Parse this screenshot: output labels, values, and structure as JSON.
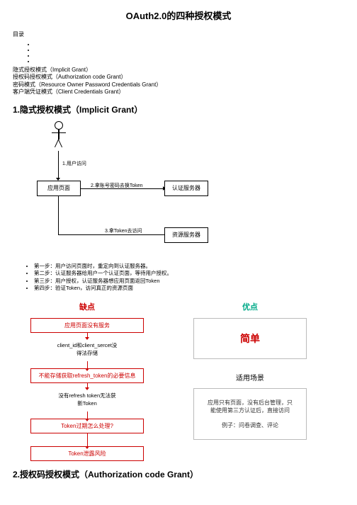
{
  "page": {
    "title": "OAuth2.0的四种授权模式"
  },
  "toc": {
    "label": "目录",
    "items": [
      "隐式授权模式（Implicit Grant）",
      "授权码授权模式（Authorization code Grant）",
      "密码模式（Resource Owner Password Credentials Grant）",
      "客户端凭证模式（Client Credentials Grant）"
    ]
  },
  "section1": {
    "heading": "1.隐式授权模式（Implicit Grant）",
    "flow": {
      "step1": "1.用户访问",
      "app_page": "应用页面",
      "step2": "2.拿账号密码去换Token",
      "auth_server": "认证服务器",
      "step3": "3.拿Token去访问",
      "resource_server": "资源服务器"
    },
    "steps": [
      "第一步：用户访问页面时，重定向到认证服务器。",
      "第二步：认证服务器给用户一个认证页面，等待用户授权。",
      "第三步：用户授权，认证服务器想应用页面返回Token",
      "第四步：验证Token，访问真正的资源页面"
    ],
    "left": {
      "title": "缺点",
      "box1": "应用页面没有服务",
      "txt1": "client_id和client_sercet没\n得法存储",
      "box2": "不能存储获取refresh_token的必要信息",
      "txt2": "没有refresh token无法获\n新Token",
      "box3": "Token过期怎么处理?",
      "box4": "Token泄露风险"
    },
    "right": {
      "title": "优点",
      "big": "简单",
      "sub": "适用场景",
      "desc1": "应用只有页面，没有后台管理，只\n能使用第三方认证后，直接访问",
      "desc2": "例子：问卷调查、评论"
    }
  },
  "section2": {
    "heading": "2.授权码授权模式（Authorization code Grant）"
  }
}
